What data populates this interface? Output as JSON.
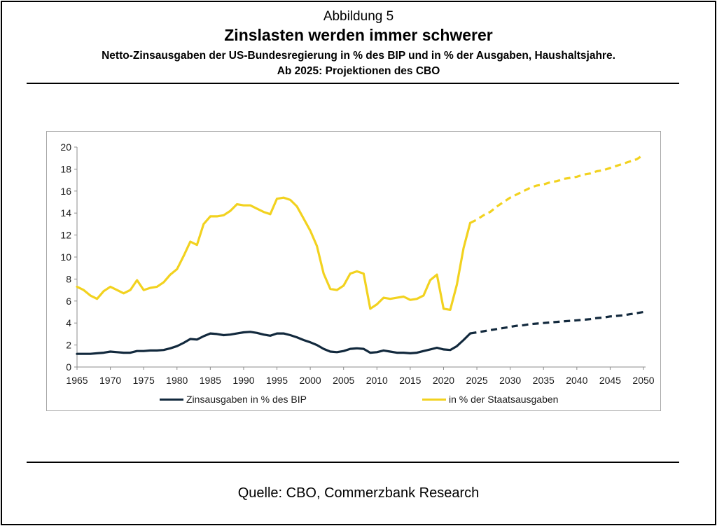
{
  "header": {
    "figure_label": "Abbildung 5",
    "title": "Zinslasten werden immer schwerer",
    "subtitle_line1": "Netto-Zinsausgaben der US-Bundesregierung in % des BIP und in % der Ausgaben, Haushaltsjahre.",
    "subtitle_line2": "Ab 2025: Projektionen des CBO"
  },
  "footer": {
    "source": "Quelle: CBO, Commerzbank Research"
  },
  "chart_data": {
    "type": "line",
    "title": "",
    "xlabel": "",
    "ylabel": "",
    "xlim": [
      1965,
      2050
    ],
    "ylim": [
      0,
      20
    ],
    "grid": false,
    "legend_position": "bottom",
    "projection_start": 2025,
    "x_ticks": [
      "1965",
      "1970",
      "1975",
      "1980",
      "1985",
      "1990",
      "1995",
      "2000",
      "2005",
      "2010",
      "2015",
      "2020",
      "2025",
      "2030",
      "2035",
      "2040",
      "2045",
      "2050"
    ],
    "y_ticks": [
      "0",
      "2",
      "4",
      "6",
      "8",
      "10",
      "12",
      "14",
      "16",
      "18",
      "20"
    ],
    "series": [
      {
        "name": "Zinsausgaben in % des BIP",
        "color": "#12293d",
        "x": [
          1965,
          1966,
          1967,
          1968,
          1969,
          1970,
          1971,
          1972,
          1973,
          1974,
          1975,
          1976,
          1977,
          1978,
          1979,
          1980,
          1981,
          1982,
          1983,
          1984,
          1985,
          1986,
          1987,
          1988,
          1989,
          1990,
          1991,
          1992,
          1993,
          1994,
          1995,
          1996,
          1997,
          1998,
          1999,
          2000,
          2001,
          2002,
          2003,
          2004,
          2005,
          2006,
          2007,
          2008,
          2009,
          2010,
          2011,
          2012,
          2013,
          2014,
          2015,
          2016,
          2017,
          2018,
          2019,
          2020,
          2021,
          2022,
          2023,
          2024,
          2025,
          2026,
          2027,
          2028,
          2029,
          2030,
          2031,
          2032,
          2033,
          2034,
          2035,
          2036,
          2037,
          2038,
          2039,
          2040,
          2041,
          2042,
          2043,
          2044,
          2045,
          2046,
          2047,
          2048,
          2049,
          2050
        ],
        "values": [
          1.2,
          1.2,
          1.2,
          1.25,
          1.3,
          1.4,
          1.35,
          1.3,
          1.3,
          1.45,
          1.45,
          1.5,
          1.5,
          1.55,
          1.7,
          1.9,
          2.2,
          2.55,
          2.5,
          2.8,
          3.05,
          3.0,
          2.9,
          2.95,
          3.05,
          3.15,
          3.2,
          3.1,
          2.95,
          2.85,
          3.05,
          3.05,
          2.9,
          2.7,
          2.45,
          2.25,
          2.0,
          1.65,
          1.4,
          1.35,
          1.45,
          1.65,
          1.7,
          1.65,
          1.3,
          1.35,
          1.5,
          1.4,
          1.3,
          1.3,
          1.25,
          1.3,
          1.45,
          1.6,
          1.75,
          1.6,
          1.55,
          1.9,
          2.45,
          3.05,
          3.15,
          3.25,
          3.35,
          3.45,
          3.55,
          3.65,
          3.75,
          3.8,
          3.9,
          3.95,
          4.0,
          4.05,
          4.1,
          4.15,
          4.2,
          4.25,
          4.3,
          4.35,
          4.45,
          4.5,
          4.6,
          4.65,
          4.7,
          4.8,
          4.9,
          5.0
        ]
      },
      {
        "name": "in % der Staatsausgaben",
        "color": "#f2d21f",
        "x": [
          1965,
          1966,
          1967,
          1968,
          1969,
          1970,
          1971,
          1972,
          1973,
          1974,
          1975,
          1976,
          1977,
          1978,
          1979,
          1980,
          1981,
          1982,
          1983,
          1984,
          1985,
          1986,
          1987,
          1988,
          1989,
          1990,
          1991,
          1992,
          1993,
          1994,
          1995,
          1996,
          1997,
          1998,
          1999,
          2000,
          2001,
          2002,
          2003,
          2004,
          2005,
          2006,
          2007,
          2008,
          2009,
          2010,
          2011,
          2012,
          2013,
          2014,
          2015,
          2016,
          2017,
          2018,
          2019,
          2020,
          2021,
          2022,
          2023,
          2024,
          2025,
          2026,
          2027,
          2028,
          2029,
          2030,
          2031,
          2032,
          2033,
          2034,
          2035,
          2036,
          2037,
          2038,
          2039,
          2040,
          2041,
          2042,
          2043,
          2044,
          2045,
          2046,
          2047,
          2048,
          2049,
          2050
        ],
        "values": [
          7.3,
          7.0,
          6.5,
          6.2,
          6.9,
          7.3,
          7.0,
          6.7,
          7.0,
          7.9,
          7.0,
          7.2,
          7.3,
          7.7,
          8.4,
          8.9,
          10.1,
          11.4,
          11.1,
          13.0,
          13.7,
          13.7,
          13.8,
          14.2,
          14.8,
          14.7,
          14.7,
          14.4,
          14.1,
          13.9,
          15.3,
          15.4,
          15.2,
          14.6,
          13.5,
          12.4,
          11.0,
          8.5,
          7.1,
          7.0,
          7.4,
          8.5,
          8.7,
          8.5,
          5.3,
          5.7,
          6.3,
          6.2,
          6.3,
          6.4,
          6.1,
          6.2,
          6.5,
          7.9,
          8.4,
          5.3,
          5.2,
          7.5,
          10.8,
          13.1,
          13.4,
          13.8,
          14.1,
          14.6,
          15.0,
          15.4,
          15.7,
          16.0,
          16.3,
          16.5,
          16.6,
          16.8,
          16.9,
          17.1,
          17.2,
          17.3,
          17.5,
          17.6,
          17.8,
          17.9,
          18.1,
          18.3,
          18.5,
          18.7,
          18.9,
          19.3
        ]
      }
    ]
  }
}
